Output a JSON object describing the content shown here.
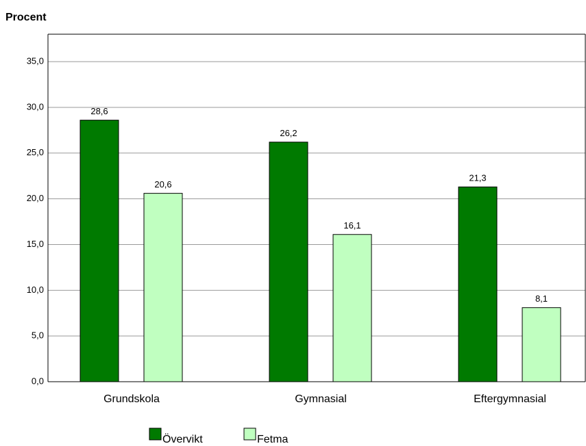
{
  "chart_data": {
    "type": "bar",
    "y_axis_label": "Procent",
    "categories": [
      "Grundskola",
      "Gymnasial",
      "Eftergymnasial"
    ],
    "series": [
      {
        "name": "Övervikt",
        "color": "#007a00",
        "values": [
          28.6,
          26.2,
          21.3
        ],
        "value_labels": [
          "28,6",
          "26,2",
          "21,3"
        ]
      },
      {
        "name": "Fetma",
        "color": "#c0ffc0",
        "values": [
          20.6,
          16.1,
          8.1
        ],
        "value_labels": [
          "20,6",
          "16,1",
          "8,1"
        ]
      }
    ],
    "ylim": [
      0,
      38
    ],
    "yticks": [
      {
        "value": 0,
        "label": "0,0"
      },
      {
        "value": 5,
        "label": "5,0"
      },
      {
        "value": 10,
        "label": "10,0"
      },
      {
        "value": 15,
        "label": "15,0"
      },
      {
        "value": 20,
        "label": "20,0"
      },
      {
        "value": 25,
        "label": "25,0"
      },
      {
        "value": 30,
        "label": "30,0"
      },
      {
        "value": 35,
        "label": "35,0"
      }
    ],
    "grid": true,
    "legend": "bottom"
  }
}
